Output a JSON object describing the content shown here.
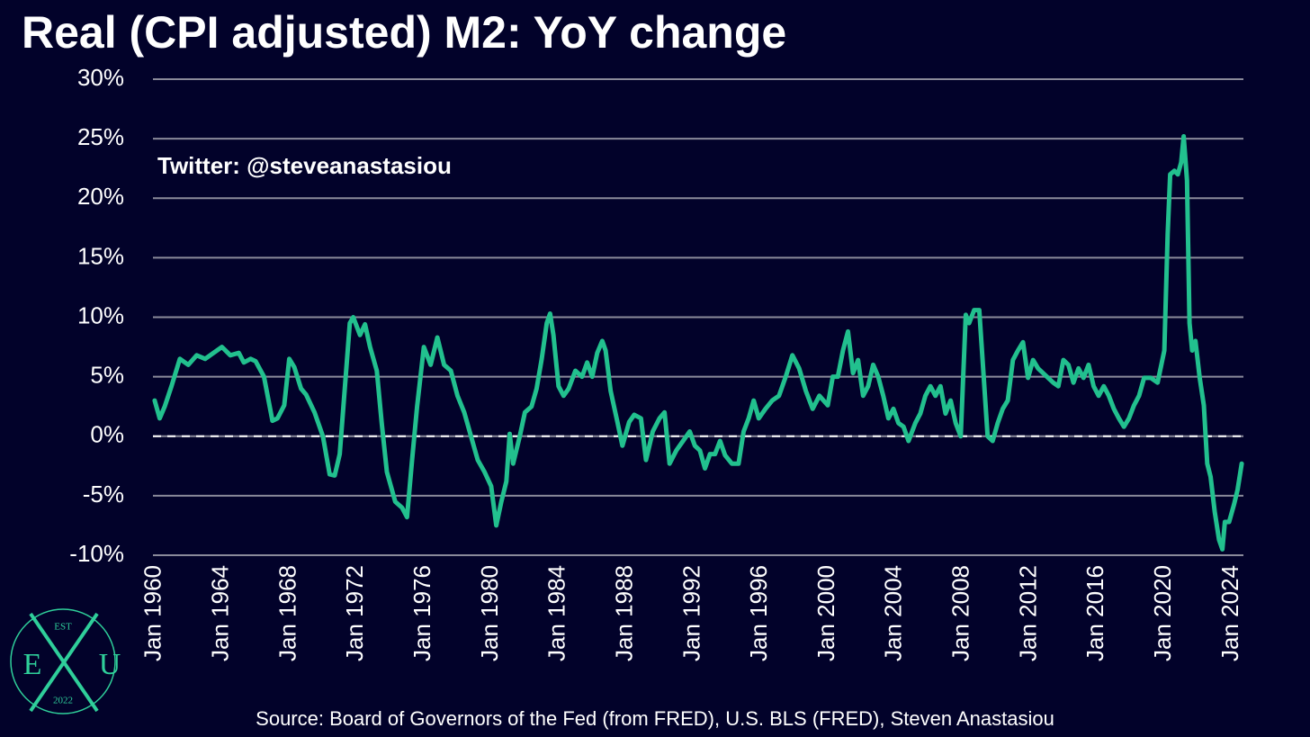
{
  "chart_data": {
    "type": "line",
    "title": "Real (CPI adjusted) M2: YoY change",
    "annotation": "Twitter: @steveanastasiou",
    "source": "Source: Board of Governors of the Fed (from FRED), U.S. BLS (FRED), Steven Anastasiou",
    "color": "#22c08e",
    "hline": 0,
    "grid": true,
    "xlim": [
      1959.9,
      2024.7
    ],
    "ylim": [
      -10,
      30
    ],
    "yticks": [
      {
        "value": 30,
        "label": "30%"
      },
      {
        "value": 25,
        "label": "25%"
      },
      {
        "value": 20,
        "label": "20%"
      },
      {
        "value": 15,
        "label": "15%"
      },
      {
        "value": 10,
        "label": "10%"
      },
      {
        "value": 5,
        "label": "5%"
      },
      {
        "value": 0,
        "label": "0%"
      },
      {
        "value": -5,
        "label": "-5%"
      },
      {
        "value": -10,
        "label": "-10%"
      }
    ],
    "xticks": [
      {
        "value": 1960,
        "label": "Jan 1960"
      },
      {
        "value": 1964,
        "label": "Jan 1964"
      },
      {
        "value": 1968,
        "label": "Jan 1968"
      },
      {
        "value": 1972,
        "label": "Jan 1972"
      },
      {
        "value": 1976,
        "label": "Jan 1976"
      },
      {
        "value": 1980,
        "label": "Jan 1980"
      },
      {
        "value": 1984,
        "label": "Jan 1984"
      },
      {
        "value": 1988,
        "label": "Jan 1988"
      },
      {
        "value": 1992,
        "label": "Jan 1992"
      },
      {
        "value": 1996,
        "label": "Jan 1996"
      },
      {
        "value": 2000,
        "label": "Jan 2000"
      },
      {
        "value": 2004,
        "label": "Jan 2004"
      },
      {
        "value": 2008,
        "label": "Jan 2008"
      },
      {
        "value": 2012,
        "label": "Jan 2012"
      },
      {
        "value": 2016,
        "label": "Jan 2016"
      },
      {
        "value": 2020,
        "label": "Jan 2020"
      },
      {
        "value": 2024,
        "label": "Jan 2024"
      }
    ],
    "x": [
      1960.0,
      1960.3,
      1960.6,
      1961.0,
      1961.5,
      1962.0,
      1962.5,
      1963.0,
      1963.5,
      1964.0,
      1964.5,
      1965.0,
      1965.3,
      1965.7,
      1966.0,
      1966.5,
      1967.0,
      1967.3,
      1967.7,
      1968.0,
      1968.3,
      1968.7,
      1969.0,
      1969.5,
      1970.0,
      1970.4,
      1970.7,
      1971.0,
      1971.3,
      1971.6,
      1971.8,
      1972.2,
      1972.5,
      1972.8,
      1973.2,
      1973.5,
      1973.8,
      1974.3,
      1974.7,
      1975.0,
      1975.3,
      1975.6,
      1976.0,
      1976.4,
      1976.8,
      1977.2,
      1977.6,
      1978.0,
      1978.4,
      1978.8,
      1979.2,
      1979.6,
      1980.0,
      1980.3,
      1980.6,
      1980.9,
      1981.1,
      1981.3,
      1981.7,
      1982.0,
      1982.4,
      1982.7,
      1983.0,
      1983.3,
      1983.5,
      1983.7,
      1984.0,
      1984.3,
      1984.6,
      1985.0,
      1985.4,
      1985.7,
      1986.0,
      1986.3,
      1986.6,
      1986.8,
      1987.1,
      1987.5,
      1987.8,
      1988.2,
      1988.5,
      1988.9,
      1989.2,
      1989.6,
      1990.0,
      1990.3,
      1990.6,
      1991.0,
      1991.4,
      1991.8,
      1992.1,
      1992.4,
      1992.7,
      1993.0,
      1993.3,
      1993.6,
      1993.9,
      1994.3,
      1994.7,
      1995.0,
      1995.3,
      1995.6,
      1995.9,
      1996.3,
      1996.7,
      1997.1,
      1997.5,
      1997.9,
      1998.3,
      1998.7,
      1999.1,
      1999.5,
      2000.0,
      2000.3,
      2000.6,
      2000.9,
      2001.2,
      2001.5,
      2001.8,
      2002.1,
      2002.4,
      2002.7,
      2003.0,
      2003.3,
      2003.6,
      2003.9,
      2004.2,
      2004.5,
      2004.8,
      2005.2,
      2005.5,
      2005.8,
      2006.1,
      2006.4,
      2006.7,
      2007.0,
      2007.3,
      2007.6,
      2007.9,
      2008.2,
      2008.4,
      2008.7,
      2009.0,
      2009.2,
      2009.5,
      2009.8,
      2010.1,
      2010.4,
      2010.7,
      2011.0,
      2011.3,
      2011.6,
      2011.9,
      2012.2,
      2012.5,
      2012.8,
      2013.1,
      2013.4,
      2013.7,
      2014.0,
      2014.3,
      2014.6,
      2014.9,
      2015.2,
      2015.5,
      2015.8,
      2016.1,
      2016.4,
      2016.7,
      2017.0,
      2017.3,
      2017.6,
      2017.9,
      2018.2,
      2018.5,
      2018.8,
      2019.2,
      2019.6,
      2020.0,
      2020.2,
      2020.35,
      2020.6,
      2020.8,
      2021.0,
      2021.15,
      2021.35,
      2021.5,
      2021.65,
      2021.85,
      2022.1,
      2022.35,
      2022.55,
      2022.75,
      2023.0,
      2023.25,
      2023.45,
      2023.6,
      2023.85,
      2024.15,
      2024.35,
      2024.6
    ],
    "values": [
      3,
      1.5,
      2.5,
      4.2,
      6.5,
      6,
      6.8,
      6.5,
      7,
      7.5,
      6.8,
      7,
      6.2,
      6.5,
      6.3,
      5,
      1.3,
      1.5,
      2.6,
      6.5,
      5.8,
      4,
      3.5,
      2,
      0,
      -3.2,
      -3.3,
      -1.5,
      4,
      9.5,
      10,
      8.5,
      9.4,
      7.5,
      5.5,
      1,
      -3,
      -5.5,
      -6,
      -6.8,
      -2,
      2.5,
      7.5,
      6,
      8.3,
      6,
      5.5,
      3.4,
      2,
      0,
      -2,
      -3,
      -4.2,
      -7.5,
      -5.5,
      -3.8,
      0.2,
      -2.3,
      0,
      2,
      2.5,
      4,
      6.5,
      9.5,
      10.3,
      8.5,
      4.2,
      3.4,
      4,
      5.5,
      5,
      6.2,
      5,
      7,
      8,
      7.2,
      3.8,
      1.2,
      -0.8,
      1.2,
      1.8,
      1.5,
      -2,
      0.4,
      1.5,
      2,
      -2.3,
      -1.2,
      -0.4,
      0.4,
      -0.8,
      -1.2,
      -2.7,
      -1.5,
      -1.5,
      -0.4,
      -1.6,
      -2.3,
      -2.3,
      0.4,
      1.5,
      3,
      1.5,
      2.3,
      3,
      3.4,
      5,
      6.8,
      5.7,
      3.8,
      2.3,
      3.4,
      2.6,
      5,
      5,
      7.2,
      8.8,
      5.3,
      6.4,
      3.4,
      4.2,
      6,
      5,
      3.4,
      1.5,
      2.3,
      1.1,
      0.8,
      -0.4,
      1.1,
      1.9,
      3.4,
      4.2,
      3.4,
      4.2,
      1.9,
      3,
      1.1,
      0,
      10.2,
      9.5,
      10.6,
      10.6,
      6.4,
      0,
      -0.4,
      1.1,
      2.3,
      3,
      6.4,
      7.2,
      7.9,
      4.9,
      6.4,
      5.7,
      5.3,
      4.9,
      4.5,
      4.2,
      6.4,
      6,
      4.5,
      5.7,
      4.9,
      6,
      4.2,
      3.4,
      4.2,
      3.4,
      2.3,
      1.5,
      0.8,
      1.5,
      2.6,
      3.4,
      4.9,
      4.9,
      4.5,
      7.2,
      17,
      22,
      22.3,
      22,
      23,
      25.2,
      21.5,
      9.5,
      7.2,
      8,
      4.9,
      2.6,
      -2.3,
      -3.4,
      -6.4,
      -8.7,
      -9.5,
      -7.2,
      -7.2,
      -5.7,
      -4.5,
      -2.3
    ]
  },
  "logo": {
    "top": "EST",
    "left": "E",
    "right": "U",
    "bottom": "2022"
  }
}
